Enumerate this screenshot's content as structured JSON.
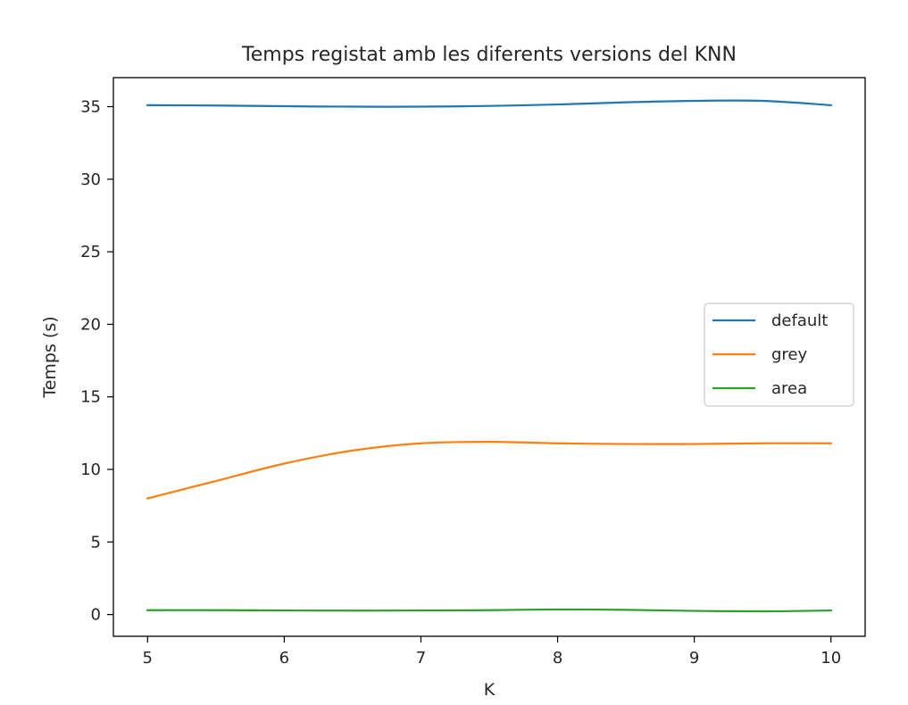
{
  "chart_data": {
    "type": "line",
    "title": "Temps registat amb les diferents versions del KNN",
    "xlabel": "K",
    "ylabel": "Temps (s)",
    "xlim": [
      4.75,
      10.25
    ],
    "ylim": [
      -1.5,
      37
    ],
    "x_ticks": [
      5,
      6,
      7,
      8,
      9,
      10
    ],
    "y_ticks": [
      0,
      5,
      10,
      15,
      20,
      25,
      30,
      35
    ],
    "grid": false,
    "legend_position": "center-right",
    "x": [
      5,
      5.5,
      6,
      6.5,
      7,
      7.5,
      8,
      8.5,
      9,
      9.5,
      10
    ],
    "series": [
      {
        "name": "default",
        "color": "#1f77b4",
        "values": [
          35.1,
          35.08,
          35.03,
          35.0,
          35.0,
          35.05,
          35.15,
          35.3,
          35.4,
          35.4,
          35.1
        ]
      },
      {
        "name": "grey",
        "color": "#ff7f0e",
        "values": [
          8.0,
          9.2,
          10.4,
          11.3,
          11.8,
          11.9,
          11.8,
          11.75,
          11.75,
          11.8,
          11.8
        ]
      },
      {
        "name": "area",
        "color": "#2ca02c",
        "values": [
          0.3,
          0.3,
          0.28,
          0.27,
          0.28,
          0.3,
          0.35,
          0.32,
          0.25,
          0.22,
          0.28
        ]
      }
    ]
  }
}
